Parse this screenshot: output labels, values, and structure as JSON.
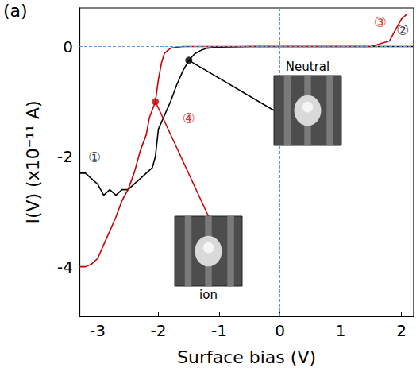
{
  "chart_data": {
    "type": "line",
    "panel_label": "(a)",
    "xlabel": "Surface bias (V)",
    "ylabel": "I(V) (x10⁻¹¹ A)",
    "xlim": [
      -3.3,
      2.2
    ],
    "ylim": [
      -4.9,
      0.7
    ],
    "xticks": [
      -3,
      -2,
      -1,
      0,
      1,
      2
    ],
    "yticks": [
      -4,
      -2,
      0
    ],
    "grid": false,
    "series": [
      {
        "color": "#000000",
        "x": [
          -3.3,
          -3.2,
          -3.1,
          -3.0,
          -2.9,
          -2.8,
          -2.7,
          -2.6,
          -2.5,
          -2.4,
          -2.3,
          -2.2,
          -2.1,
          -2.05,
          -2.0,
          -1.9,
          -1.8,
          -1.7,
          -1.6,
          -1.5,
          -1.4,
          -1.3,
          -1.2,
          -1.0,
          -0.5,
          0,
          1,
          2,
          2.2
        ],
        "values": [
          -2.3,
          -2.3,
          -2.4,
          -2.5,
          -2.7,
          -2.6,
          -2.7,
          -2.6,
          -2.6,
          -2.5,
          -2.4,
          -2.3,
          -2.2,
          -2.0,
          -1.5,
          -1.25,
          -1.0,
          -0.7,
          -0.45,
          -0.25,
          -0.13,
          -0.07,
          -0.03,
          -0.01,
          0,
          0,
          0,
          0,
          0
        ]
      },
      {
        "color": "#cc0000",
        "x": [
          -3.3,
          -3.2,
          -3.1,
          -3.0,
          -2.9,
          -2.8,
          -2.7,
          -2.6,
          -2.5,
          -2.4,
          -2.3,
          -2.2,
          -2.15,
          -2.1,
          -2.05,
          -2.0,
          -1.95,
          -1.9,
          -1.8,
          -1.6,
          -1.0,
          0,
          1,
          1.5,
          1.8,
          1.9,
          2.0,
          2.1
        ],
        "values": [
          -4.0,
          -4.0,
          -3.95,
          -3.85,
          -3.6,
          -3.35,
          -3.1,
          -2.8,
          -2.6,
          -2.3,
          -1.9,
          -1.6,
          -1.3,
          -1.15,
          -1.0,
          -0.6,
          -0.3,
          -0.12,
          -0.03,
          0,
          0,
          0,
          0,
          0,
          0.1,
          0.3,
          0.5,
          0.6
        ]
      }
    ],
    "points": [
      {
        "x": -1.5,
        "y": -0.25,
        "color": "#000000",
        "label": "Neutral"
      },
      {
        "x": -2.05,
        "y": -1.0,
        "color": "#cc0000",
        "label": "ion"
      }
    ],
    "annotations": [
      {
        "text": "①",
        "x": -3.05,
        "y": -2.0,
        "color": "#000000"
      },
      {
        "text": "②",
        "x": 2.02,
        "y": 0.3,
        "color": "#000000"
      },
      {
        "text": "③",
        "x": 1.65,
        "y": 0.45,
        "color": "#cc0000"
      },
      {
        "text": "④",
        "x": -1.5,
        "y": -1.3,
        "color": "#cc0000"
      }
    ],
    "reference_lines": [
      {
        "axis": "x",
        "value": 0,
        "color": "#5b9bd5"
      },
      {
        "axis": "y",
        "value": 0,
        "color": "#5b9bd5"
      }
    ]
  }
}
